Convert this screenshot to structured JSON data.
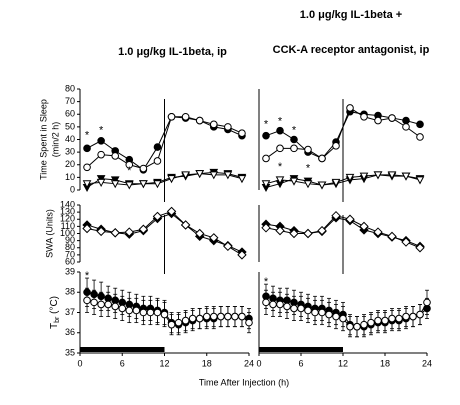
{
  "chart_data": [
    {
      "type": "line",
      "title": [
        "1.0 μg/kg IL-1beta, ip"
      ],
      "ylabel": [
        "Time Spent in Sleep",
        "(min/2 h)"
      ],
      "xlim": [
        0,
        24
      ],
      "ylim": [
        0,
        80
      ],
      "yticks": [
        0,
        10,
        20,
        30,
        40,
        50,
        60,
        70,
        80
      ],
      "vline": 12,
      "x": [
        1,
        3,
        5,
        7,
        9,
        11,
        13,
        15,
        17,
        19,
        21,
        23
      ],
      "series": [
        {
          "color": "#000000",
          "marker": "circle",
          "filled": true,
          "values": [
            33,
            39,
            31,
            24,
            16,
            34,
            58,
            57,
            55,
            50,
            48,
            43
          ]
        },
        {
          "color": "#000000",
          "marker": "circle",
          "filled": false,
          "values": [
            18,
            28,
            27,
            20,
            17,
            23,
            58,
            58,
            55,
            52,
            50,
            45
          ]
        },
        {
          "color": "#000000",
          "marker": "triangle-down",
          "filled": true,
          "values": [
            2,
            9,
            8,
            5,
            5,
            6,
            10,
            11,
            13,
            14,
            13,
            10
          ]
        },
        {
          "color": "#000000",
          "marker": "triangle-down",
          "filled": false,
          "values": [
            5,
            6,
            5,
            4,
            5,
            5,
            9,
            12,
            13,
            12,
            12,
            9
          ]
        }
      ],
      "annotations": [
        {
          "text": "*",
          "x": 1,
          "y": 43
        },
        {
          "text": "*",
          "x": 3,
          "y": 47
        },
        {
          "text": "*",
          "x": 7,
          "y": 15
        }
      ]
    },
    {
      "type": "line",
      "title": [
        "1.0 μg/kg IL-1beta +",
        "CCK-A receptor antagonist, ip"
      ],
      "xlim": [
        0,
        24
      ],
      "ylim": [
        0,
        80
      ],
      "vline": 12,
      "x": [
        1,
        3,
        5,
        7,
        9,
        11,
        13,
        15,
        17,
        19,
        21,
        23
      ],
      "series": [
        {
          "color": "#000000",
          "marker": "circle",
          "filled": true,
          "values": [
            43,
            47,
            40,
            30,
            25,
            38,
            62,
            60,
            59,
            57,
            55,
            52
          ]
        },
        {
          "color": "#000000",
          "marker": "circle",
          "filled": false,
          "values": [
            25,
            33,
            33,
            32,
            25,
            35,
            65,
            58,
            55,
            57,
            50,
            42
          ]
        },
        {
          "color": "#000000",
          "marker": "triangle-down",
          "filled": true,
          "values": [
            2,
            5,
            9,
            7,
            4,
            5,
            8,
            9,
            12,
            11,
            11,
            9
          ]
        },
        {
          "color": "#000000",
          "marker": "triangle-down",
          "filled": false,
          "values": [
            5,
            8,
            7,
            5,
            4,
            6,
            10,
            11,
            12,
            12,
            11,
            8
          ]
        }
      ],
      "annotations": [
        {
          "text": "*",
          "x": 1,
          "y": 52
        },
        {
          "text": "*",
          "x": 3,
          "y": 54
        },
        {
          "text": "*",
          "x": 5,
          "y": 47
        },
        {
          "text": "*",
          "x": 3,
          "y": 18
        },
        {
          "text": "*",
          "x": 7,
          "y": 17
        }
      ]
    },
    {
      "type": "line",
      "ylabel": [
        "SWA (Units)"
      ],
      "xlim": [
        0,
        24
      ],
      "ylim": [
        60,
        140
      ],
      "yticks": [
        60,
        70,
        80,
        90,
        100,
        110,
        120,
        130,
        140
      ],
      "vline": 12,
      "x": [
        1,
        3,
        5,
        7,
        9,
        11,
        13,
        15,
        17,
        19,
        21,
        23
      ],
      "series": [
        {
          "color": "#000000",
          "marker": "diamond",
          "filled": true,
          "values": [
            112,
            106,
            101,
            99,
            104,
            121,
            128,
            112,
            96,
            90,
            83,
            74
          ]
        },
        {
          "color": "#000000",
          "marker": "diamond",
          "filled": false,
          "values": [
            107,
            103,
            101,
            102,
            106,
            124,
            131,
            112,
            100,
            94,
            82,
            70
          ]
        }
      ]
    },
    {
      "type": "line",
      "xlim": [
        0,
        24
      ],
      "ylim": [
        60,
        140
      ],
      "vline": 12,
      "x": [
        1,
        3,
        5,
        7,
        9,
        11,
        13,
        15,
        17,
        19,
        21,
        23
      ],
      "series": [
        {
          "color": "#000000",
          "marker": "diamond",
          "filled": true,
          "values": [
            113,
            110,
            104,
            100,
            103,
            122,
            118,
            105,
            100,
            95,
            90,
            82
          ]
        },
        {
          "color": "#000000",
          "marker": "diamond",
          "filled": false,
          "values": [
            108,
            104,
            100,
            100,
            104,
            125,
            120,
            110,
            102,
            96,
            88,
            80
          ]
        }
      ]
    },
    {
      "type": "line",
      "ylabel": {
        "main": "T",
        "sub": "br",
        "unit": " (°C)"
      },
      "xlim": [
        0,
        24
      ],
      "ylim": [
        35,
        39
      ],
      "yticks": [
        35,
        36,
        37,
        38,
        39
      ],
      "xticks": [
        0,
        6,
        12,
        18,
        24
      ],
      "dark_period": [
        0,
        12
      ],
      "x": [
        1,
        2,
        3,
        4,
        5,
        6,
        7,
        8,
        9,
        10,
        11,
        12,
        13,
        14,
        15,
        16,
        17,
        18,
        19,
        20,
        21,
        22,
        23,
        24
      ],
      "series": [
        {
          "color": "#000000",
          "marker": "circle",
          "filled": true,
          "values": [
            38.0,
            37.9,
            37.8,
            37.7,
            37.6,
            37.5,
            37.4,
            37.3,
            37.2,
            37.2,
            37.1,
            37.0,
            36.5,
            36.4,
            36.5,
            36.6,
            36.7,
            36.7,
            36.7,
            36.8,
            36.8,
            36.8,
            36.8,
            36.7
          ],
          "errors": [
            0.7,
            0.7,
            0.7,
            0.6,
            0.6,
            0.6,
            0.6,
            0.6,
            0.6,
            0.6,
            0.6,
            0.6,
            0.5,
            0.5,
            0.5,
            0.5,
            0.5,
            0.5,
            0.5,
            0.5,
            0.5,
            0.5,
            0.5,
            0.5
          ]
        },
        {
          "color": "#000000",
          "marker": "circle",
          "filled": false,
          "values": [
            37.6,
            37.5,
            37.4,
            37.4,
            37.3,
            37.2,
            37.1,
            37.1,
            37.0,
            37.0,
            37.0,
            36.9,
            36.4,
            36.5,
            36.6,
            36.7,
            36.7,
            36.8,
            36.8,
            36.8,
            36.8,
            36.8,
            36.8,
            36.5
          ],
          "errors": [
            0.6,
            0.6,
            0.6,
            0.6,
            0.6,
            0.6,
            0.6,
            0.6,
            0.6,
            0.6,
            0.6,
            0.6,
            0.5,
            0.5,
            0.5,
            0.5,
            0.5,
            0.5,
            0.5,
            0.5,
            0.5,
            0.5,
            0.5,
            0.5
          ]
        }
      ],
      "annotations": [
        {
          "text": "*",
          "x": 1,
          "y": 38.8
        }
      ]
    },
    {
      "type": "line",
      "xlim": [
        0,
        24
      ],
      "ylim": [
        35,
        39
      ],
      "xticks": [
        0,
        6,
        12,
        18,
        24
      ],
      "dark_period": [
        0,
        12
      ],
      "x": [
        1,
        2,
        3,
        4,
        5,
        6,
        7,
        8,
        9,
        10,
        11,
        12,
        13,
        14,
        15,
        16,
        17,
        18,
        19,
        20,
        21,
        22,
        23,
        24
      ],
      "series": [
        {
          "color": "#000000",
          "marker": "circle",
          "filled": true,
          "values": [
            37.8,
            37.7,
            37.6,
            37.6,
            37.5,
            37.4,
            37.3,
            37.2,
            37.2,
            37.1,
            37.0,
            36.9,
            36.4,
            36.3,
            36.3,
            36.4,
            36.5,
            36.5,
            36.6,
            36.6,
            36.7,
            36.8,
            36.9,
            37.2
          ],
          "errors": [
            0.6,
            0.6,
            0.6,
            0.6,
            0.6,
            0.6,
            0.6,
            0.6,
            0.6,
            0.6,
            0.6,
            0.6,
            0.5,
            0.5,
            0.5,
            0.5,
            0.5,
            0.5,
            0.5,
            0.5,
            0.5,
            0.5,
            0.5,
            0.5
          ]
        },
        {
          "color": "#000000",
          "marker": "circle",
          "filled": false,
          "values": [
            37.5,
            37.4,
            37.4,
            37.3,
            37.2,
            37.2,
            37.1,
            37.0,
            37.0,
            36.9,
            36.8,
            36.7,
            36.3,
            36.3,
            36.4,
            36.5,
            36.6,
            36.6,
            36.7,
            36.7,
            36.8,
            36.8,
            36.9,
            37.5
          ],
          "errors": [
            0.6,
            0.6,
            0.6,
            0.6,
            0.6,
            0.6,
            0.6,
            0.6,
            0.6,
            0.6,
            0.6,
            0.6,
            0.5,
            0.5,
            0.5,
            0.5,
            0.5,
            0.5,
            0.5,
            0.5,
            0.5,
            0.5,
            0.5,
            0.6
          ]
        }
      ],
      "annotations": [
        {
          "text": "*",
          "x": 1,
          "y": 38.5
        }
      ]
    }
  ],
  "xlabel": "Time After Injection (h)"
}
